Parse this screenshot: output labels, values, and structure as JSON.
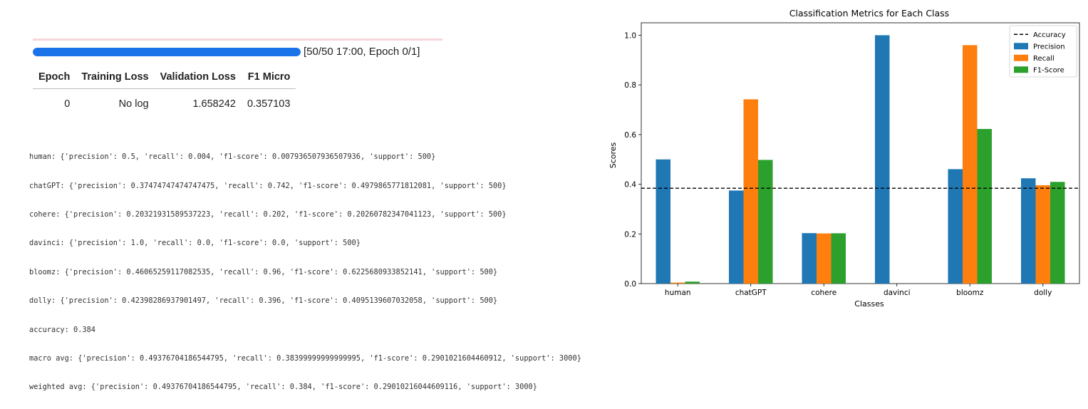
{
  "progress": {
    "status": "[50/50 17:00, Epoch 0/1]",
    "fraction": 1.0
  },
  "training_table": {
    "headers": [
      "Epoch",
      "Training Loss",
      "Validation Loss",
      "F1 Micro"
    ],
    "rows": [
      [
        "0",
        "No log",
        "1.658242",
        "0.357103"
      ]
    ]
  },
  "report_lines": [
    "human: {'precision': 0.5, 'recall': 0.004, 'f1-score': 0.007936507936507936, 'support': 500}",
    "chatGPT: {'precision': 0.37474747474747475, 'recall': 0.742, 'f1-score': 0.4979865771812081, 'support': 500}",
    "cohere: {'precision': 0.20321931589537223, 'recall': 0.202, 'f1-score': 0.20260782347041123, 'support': 500}",
    "davinci: {'precision': 1.0, 'recall': 0.0, 'f1-score': 0.0, 'support': 500}",
    "bloomz: {'precision': 0.46065259117082535, 'recall': 0.96, 'f1-score': 0.6225680933852141, 'support': 500}",
    "dolly: {'precision': 0.42398286937901497, 'recall': 0.396, 'f1-score': 0.4095139607032058, 'support': 500}",
    "accuracy: 0.384",
    "macro avg: {'precision': 0.49376704186544795, 'recall': 0.38399999999999995, 'f1-score': 0.2901021604460912, 'support': 3000}",
    "weighted avg: {'precision': 0.49376704186544795, 'recall': 0.384, 'f1-score': 0.29010216044609116, 'support': 3000}"
  ],
  "chart_data": {
    "type": "bar",
    "title": "Classification Metrics for Each Class",
    "xlabel": "Classes",
    "ylabel": "Scores",
    "ylim": [
      0,
      1.05
    ],
    "yticks": [
      "0.0",
      "0.2",
      "0.4",
      "0.6",
      "0.8",
      "1.0"
    ],
    "grid": false,
    "legend_position": "top-right",
    "categories": [
      "human",
      "chatGPT",
      "cohere",
      "davinci",
      "bloomz",
      "dolly"
    ],
    "series": [
      {
        "name": "Precision",
        "color": "#1f77b4",
        "values": [
          0.5,
          0.3747,
          0.2032,
          1.0,
          0.4607,
          0.424
        ]
      },
      {
        "name": "Recall",
        "color": "#ff7f0e",
        "values": [
          0.004,
          0.742,
          0.202,
          0.0,
          0.96,
          0.396
        ]
      },
      {
        "name": "F1-Score",
        "color": "#2ca02c",
        "values": [
          0.0079,
          0.498,
          0.2026,
          0.0,
          0.6226,
          0.4095
        ]
      }
    ],
    "reference_line": {
      "name": "Accuracy",
      "value": 0.384,
      "style": "dashed",
      "color": "#000000"
    }
  }
}
